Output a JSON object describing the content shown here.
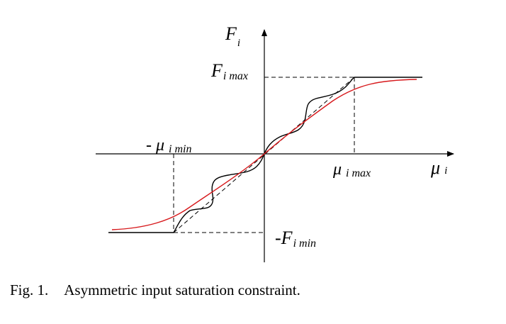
{
  "labels": {
    "y_axis": {
      "main": "F",
      "sub": "i"
    },
    "x_axis": {
      "main": "μ",
      "sub": "i"
    },
    "f_max": {
      "main": "F",
      "sub": "i max"
    },
    "f_min": {
      "prefix": "-",
      "main": "F",
      "sub": "i min"
    },
    "mu_max": {
      "main": "μ",
      "sub": "i max"
    },
    "mu_min": {
      "prefix": "- ",
      "main": "μ",
      "sub": "i min"
    }
  },
  "caption": {
    "label": "Fig. 1.",
    "text": "Asymmetric input saturation constraint."
  },
  "colors": {
    "axes": "#000000",
    "saturation_curve": "#000000",
    "smooth_curve": "#d7191c",
    "guides": "#000000"
  }
}
